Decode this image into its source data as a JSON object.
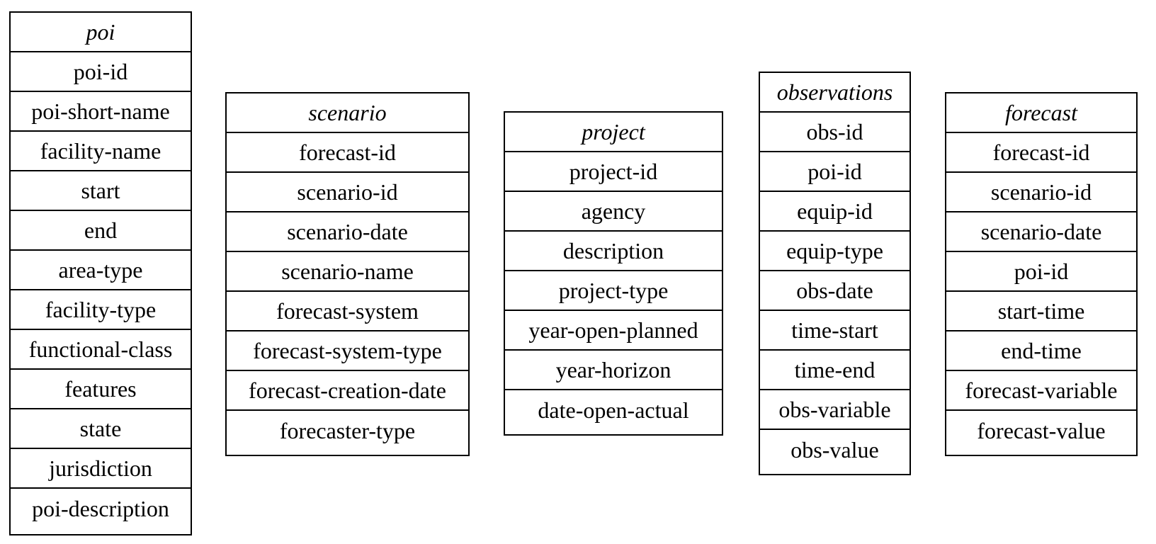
{
  "entities": [
    {
      "title": "poi",
      "fields": [
        "poi-id",
        "poi-short-name",
        "facility-name",
        "start",
        "end",
        "area-type",
        "facility-type",
        "functional-class",
        "features",
        "state",
        "jurisdiction",
        "poi-description"
      ]
    },
    {
      "title": "scenario",
      "fields": [
        "forecast-id",
        "scenario-id",
        "scenario-date",
        "scenario-name",
        "forecast-system",
        "forecast-system-type",
        "forecast-creation-date",
        "forecaster-type"
      ]
    },
    {
      "title": "project",
      "fields": [
        "project-id",
        "agency",
        "description",
        "project-type",
        "year-open-planned",
        "year-horizon",
        "date-open-actual"
      ]
    },
    {
      "title": "observations",
      "fields": [
        "obs-id",
        "poi-id",
        "equip-id",
        "equip-type",
        "obs-date",
        "time-start",
        "time-end",
        "obs-variable",
        "obs-value"
      ]
    },
    {
      "title": "forecast",
      "fields": [
        "forecast-id",
        "scenario-id",
        "scenario-date",
        "poi-id",
        "start-time",
        "end-time",
        "forecast-variable",
        "forecast-value"
      ]
    }
  ]
}
